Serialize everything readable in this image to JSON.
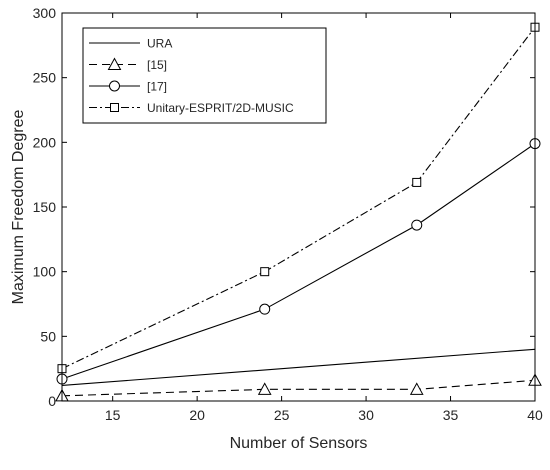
{
  "chart_data": {
    "type": "line",
    "title": "",
    "xlabel": "Number of Sensors",
    "ylabel": "Maximum Freedom Degree",
    "xlim": [
      12,
      40
    ],
    "ylim": [
      0,
      300
    ],
    "xticks": [
      15,
      20,
      25,
      30,
      35,
      40
    ],
    "yticks": [
      0,
      50,
      100,
      150,
      200,
      250,
      300
    ],
    "grid": false,
    "legend_position": "top-left",
    "series": [
      {
        "name": "URA",
        "x": [
          12,
          40
        ],
        "values": [
          12,
          40
        ],
        "color": "#000000",
        "line_style": "solid",
        "marker": "none"
      },
      {
        "name": "[15]",
        "x": [
          12,
          24,
          33,
          40
        ],
        "values": [
          4,
          9,
          9,
          16
        ],
        "color": "#000000",
        "line_style": "dashed",
        "marker": "triangle"
      },
      {
        "name": "[17]",
        "x": [
          12,
          24,
          33,
          40
        ],
        "values": [
          17,
          71,
          136,
          199
        ],
        "color": "#000000",
        "line_style": "solid",
        "marker": "circle"
      },
      {
        "name": "Unitary-ESPRIT/2D-MUSIC",
        "x": [
          12,
          24,
          33,
          40
        ],
        "values": [
          25,
          100,
          169,
          289
        ],
        "color": "#000000",
        "line_style": "dashdot",
        "marker": "square"
      }
    ]
  }
}
